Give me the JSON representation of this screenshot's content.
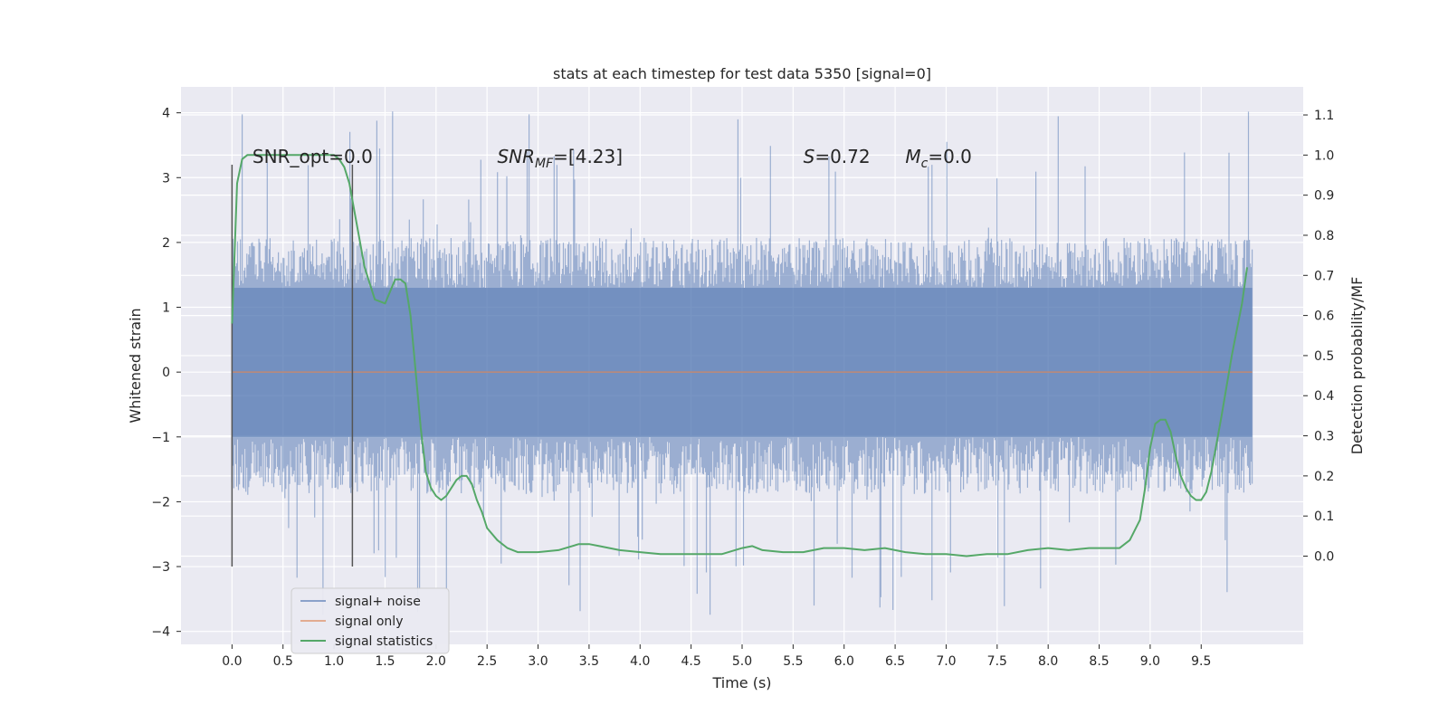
{
  "chart_data": {
    "type": "line",
    "title": "stats at each timestep for test data 5350 [signal=0]",
    "xlabel": "Time (s)",
    "ylabel": "Whitened strain",
    "y2label": "Detection probability/MF",
    "xlim": [
      -0.5,
      10.5
    ],
    "ylim": [
      -4.2,
      4.4
    ],
    "y2lim": [
      -0.22,
      1.17
    ],
    "x_ticks": [
      0.0,
      0.5,
      1.0,
      1.5,
      2.0,
      2.5,
      3.0,
      3.5,
      4.0,
      4.5,
      5.0,
      5.5,
      6.0,
      6.5,
      7.0,
      7.5,
      8.0,
      8.5,
      9.0,
      9.5
    ],
    "x_tick_labels": [
      "0.0",
      "0.5",
      "1.0",
      "1.5",
      "2.0",
      "2.5",
      "3.0",
      "3.5",
      "4.0",
      "4.5",
      "5.0",
      "5.5",
      "6.0",
      "6.5",
      "7.0",
      "7.5",
      "8.0",
      "8.5",
      "9.0",
      "9.5"
    ],
    "y_ticks": [
      -4,
      -3,
      -2,
      -1,
      0,
      1,
      2,
      3,
      4
    ],
    "y_tick_labels": [
      "−4",
      "−3",
      "−2",
      "−1",
      "0",
      "1",
      "2",
      "3",
      "4"
    ],
    "y2_ticks": [
      0.0,
      0.1,
      0.2,
      0.3,
      0.4,
      0.5,
      0.6,
      0.7,
      0.8,
      0.9,
      1.0,
      1.1
    ],
    "y2_tick_labels": [
      "0.0",
      "0.1",
      "0.2",
      "0.3",
      "0.4",
      "0.5",
      "0.6",
      "0.7",
      "0.8",
      "0.9",
      "1.0",
      "1.1"
    ],
    "grid": true,
    "legend_position": "lower-left",
    "colors": {
      "background": "#eaeaf2",
      "grid": "#ffffff",
      "noise": "#4c72b0",
      "signal": "#dd8452",
      "statistics": "#55a868",
      "vlines": "#555555"
    },
    "series": [
      {
        "name": "signal+ noise",
        "axis": "left",
        "kind": "noise",
        "x_range": [
          0.0,
          10.0
        ],
        "envelope": {
          "upper_typical": 2.0,
          "lower_typical": -1.8,
          "max": 4.05,
          "min": -3.8,
          "dense_band": [
            -1.0,
            1.3
          ]
        }
      },
      {
        "name": "signal only",
        "axis": "left",
        "x": [
          0.0,
          10.0
        ],
        "y": [
          0.0,
          0.0
        ]
      },
      {
        "name": "signal statistics",
        "axis": "right",
        "x": [
          0.0,
          0.05,
          0.1,
          0.15,
          0.2,
          0.3,
          0.5,
          0.7,
          0.9,
          1.0,
          1.05,
          1.1,
          1.15,
          1.2,
          1.3,
          1.4,
          1.5,
          1.55,
          1.6,
          1.65,
          1.7,
          1.75,
          1.8,
          1.85,
          1.9,
          1.95,
          2.0,
          2.05,
          2.1,
          2.15,
          2.2,
          2.25,
          2.3,
          2.35,
          2.4,
          2.45,
          2.5,
          2.6,
          2.7,
          2.8,
          3.0,
          3.2,
          3.4,
          3.5,
          3.6,
          3.8,
          4.0,
          4.2,
          4.4,
          4.6,
          4.8,
          5.0,
          5.1,
          5.2,
          5.4,
          5.6,
          5.8,
          6.0,
          6.2,
          6.4,
          6.6,
          6.8,
          7.0,
          7.2,
          7.4,
          7.6,
          7.8,
          8.0,
          8.2,
          8.4,
          8.6,
          8.7,
          8.8,
          8.9,
          8.95,
          9.0,
          9.05,
          9.1,
          9.15,
          9.2,
          9.25,
          9.3,
          9.35,
          9.4,
          9.45,
          9.5,
          9.55,
          9.6,
          9.65,
          9.7,
          9.8,
          9.9,
          9.95
        ],
        "y": [
          0.58,
          0.93,
          0.99,
          1.0,
          1.0,
          1.0,
          1.0,
          1.0,
          1.0,
          1.0,
          0.99,
          0.97,
          0.93,
          0.86,
          0.72,
          0.64,
          0.63,
          0.66,
          0.69,
          0.69,
          0.68,
          0.6,
          0.46,
          0.32,
          0.21,
          0.17,
          0.15,
          0.14,
          0.15,
          0.17,
          0.19,
          0.2,
          0.2,
          0.18,
          0.14,
          0.11,
          0.07,
          0.04,
          0.02,
          0.01,
          0.01,
          0.015,
          0.03,
          0.03,
          0.025,
          0.015,
          0.01,
          0.005,
          0.005,
          0.005,
          0.005,
          0.02,
          0.025,
          0.015,
          0.01,
          0.01,
          0.02,
          0.02,
          0.015,
          0.02,
          0.01,
          0.005,
          0.005,
          0.0,
          0.005,
          0.005,
          0.015,
          0.02,
          0.015,
          0.02,
          0.02,
          0.02,
          0.04,
          0.09,
          0.17,
          0.27,
          0.33,
          0.34,
          0.34,
          0.31,
          0.25,
          0.2,
          0.17,
          0.15,
          0.14,
          0.14,
          0.16,
          0.21,
          0.28,
          0.35,
          0.5,
          0.63,
          0.72
        ]
      }
    ],
    "vlines": [
      {
        "x": 0.0,
        "y_from": -3.0,
        "y_to": 3.2
      },
      {
        "x": 1.18,
        "y_from": -3.0,
        "y_to": 3.2
      }
    ],
    "annotations": [
      {
        "text": "SNR_opt=0.0",
        "x": 0.2,
        "y": 3.2
      },
      {
        "text_parts": [
          "SNR",
          "MF",
          "=[4.23]"
        ],
        "x": 2.6,
        "y": 3.2
      },
      {
        "text_parts": [
          "S",
          "=0.72"
        ],
        "x": 5.6,
        "y": 3.2
      },
      {
        "text_parts": [
          "M",
          "c",
          "=0.0"
        ],
        "x": 6.6,
        "y": 3.2
      }
    ]
  }
}
